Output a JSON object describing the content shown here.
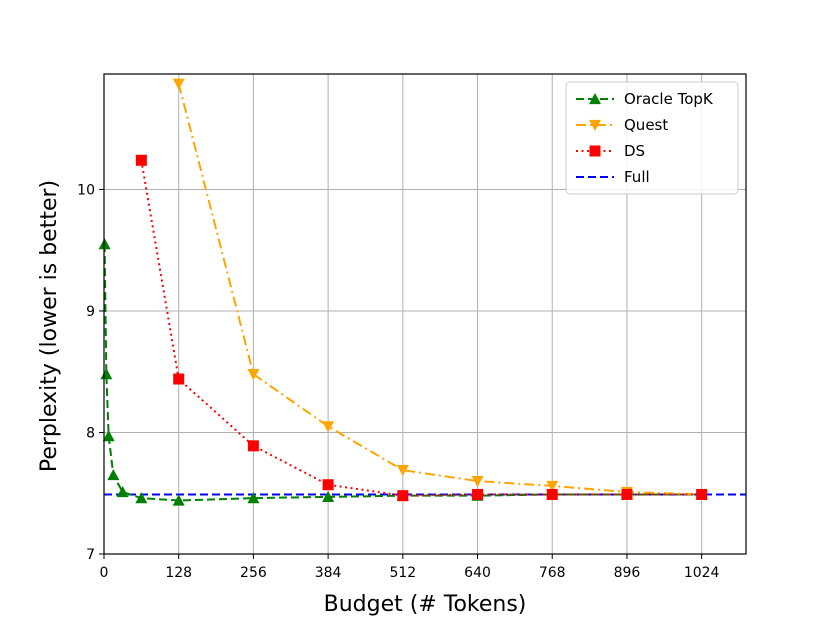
{
  "chart_data": {
    "type": "line",
    "xlabel": "Budget (# Tokens)",
    "ylabel": "Perplexity (lower is better)",
    "xlim": [
      0,
      1100
    ],
    "ylim": [
      7,
      10.95
    ],
    "xticks": [
      0,
      128,
      256,
      384,
      512,
      640,
      768,
      896,
      1024
    ],
    "yticks": [
      7,
      8,
      9,
      10
    ],
    "grid": true,
    "legend_position": "top-right",
    "series": [
      {
        "name": "Oracle TopK",
        "color": "#008000",
        "linestyle": "dashed",
        "marker": "triangle-up",
        "x": [
          1,
          4,
          8,
          16,
          32,
          64,
          128,
          256,
          384,
          512,
          640,
          768,
          896,
          1024
        ],
        "y": [
          9.55,
          8.48,
          7.97,
          7.65,
          7.51,
          7.46,
          7.44,
          7.46,
          7.47,
          7.48,
          7.48,
          7.49,
          7.49,
          7.49
        ]
      },
      {
        "name": "Quest",
        "color": "#FFA500",
        "linestyle": "dashdot",
        "marker": "triangle-down",
        "x": [
          128,
          256,
          384,
          512,
          640,
          768,
          896,
          1024
        ],
        "y": [
          10.87,
          8.48,
          8.05,
          7.69,
          7.6,
          7.56,
          7.51,
          7.49
        ]
      },
      {
        "name": "DS",
        "color": "#FF0000",
        "linestyle": "dotted",
        "marker": "square",
        "x": [
          64,
          128,
          256,
          384,
          512,
          640,
          768,
          896,
          1024
        ],
        "y": [
          10.24,
          8.44,
          7.89,
          7.57,
          7.48,
          7.49,
          7.49,
          7.49,
          7.49
        ]
      },
      {
        "name": "Full",
        "color": "#0000FF",
        "linestyle": "dashed",
        "marker": "none",
        "hline": 7.49
      }
    ]
  }
}
